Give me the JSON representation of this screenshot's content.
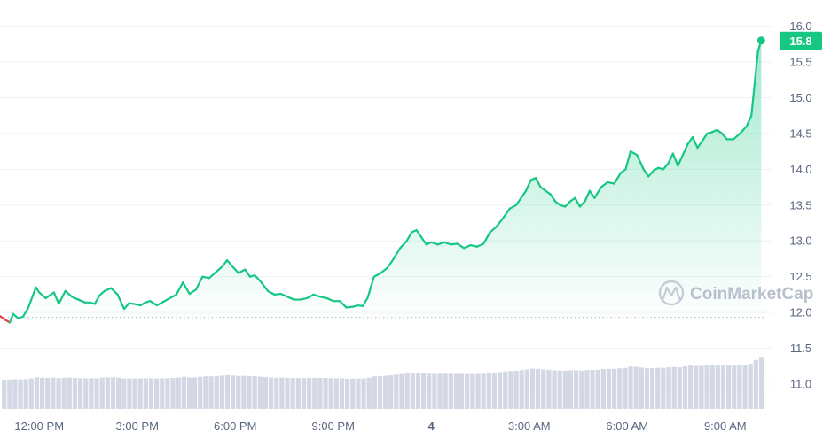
{
  "chart_data": {
    "type": "line",
    "title": "",
    "xlabel": "",
    "ylabel": "",
    "ylim": [
      10.6,
      16.2
    ],
    "y_ticks": [
      "16.0",
      "15.5",
      "15.0",
      "14.5",
      "14.0",
      "13.5",
      "13.0",
      "12.5",
      "12.0",
      "11.5",
      "11.0"
    ],
    "x_ticks": [
      "12:00 PM",
      "3:00 PM",
      "6:00 PM",
      "9:00 PM",
      "4",
      "3:00 AM",
      "6:00 AM",
      "9:00 AM"
    ],
    "x_range_hours": [
      -1.2,
      22.2
    ],
    "x_tick_hours": [
      0,
      3,
      6,
      9,
      12,
      15,
      18,
      21
    ],
    "reference_value": 11.93,
    "last_price": 15.8,
    "last_price_label": "15.8",
    "series": [
      {
        "values_hours": [
          -1.2,
          -1.05,
          -0.9,
          -0.8,
          -0.65,
          -0.5,
          -0.35,
          -0.1,
          0.0,
          0.2,
          0.45,
          0.6,
          0.8,
          1.0,
          1.2,
          1.4,
          1.55,
          1.7,
          1.85,
          2.0,
          2.2,
          2.4,
          2.6,
          2.75,
          2.9,
          3.1,
          3.25,
          3.4,
          3.6,
          3.8,
          4.0,
          4.2,
          4.4,
          4.6,
          4.8,
          5.0,
          5.2,
          5.4,
          5.6,
          5.75,
          5.9,
          6.1,
          6.3,
          6.45,
          6.6,
          6.8,
          7.0,
          7.2,
          7.4,
          7.6,
          7.8,
          8.0,
          8.2,
          8.4,
          8.6,
          8.8,
          9.0,
          9.2,
          9.4,
          9.6,
          9.75,
          9.9,
          10.05,
          10.25,
          10.45,
          10.65,
          10.85,
          11.05,
          11.25,
          11.4,
          11.55,
          11.7,
          11.85,
          12.0,
          12.2,
          12.4,
          12.6,
          12.8,
          13.0,
          13.2,
          13.4,
          13.6,
          13.8,
          14.0,
          14.2,
          14.4,
          14.6,
          14.75,
          14.9,
          15.05,
          15.2,
          15.35,
          15.5,
          15.65,
          15.8,
          15.95,
          16.1,
          16.25,
          16.4,
          16.55,
          16.7,
          16.85,
          17.0,
          17.2,
          17.4,
          17.6,
          17.8,
          17.95,
          18.1,
          18.3,
          18.5,
          18.65,
          18.8,
          18.95,
          19.1,
          19.25,
          19.4,
          19.55,
          19.7,
          19.85,
          20.0,
          20.15,
          20.3,
          20.45,
          20.6,
          20.75,
          20.9,
          21.05,
          21.25,
          21.45,
          21.65,
          21.8,
          21.9,
          22.0,
          22.1
        ],
        "values": [
          11.95,
          11.9,
          11.86,
          11.98,
          11.92,
          11.94,
          12.05,
          12.35,
          12.28,
          12.2,
          12.28,
          12.12,
          12.3,
          12.22,
          12.18,
          12.14,
          12.14,
          12.12,
          12.24,
          12.3,
          12.34,
          12.25,
          12.05,
          12.13,
          12.12,
          12.1,
          12.14,
          12.16,
          12.1,
          12.15,
          12.2,
          12.25,
          12.42,
          12.26,
          12.32,
          12.5,
          12.48,
          12.56,
          12.64,
          12.73,
          12.65,
          12.55,
          12.6,
          12.5,
          12.52,
          12.42,
          12.3,
          12.25,
          12.26,
          12.22,
          12.18,
          12.18,
          12.2,
          12.25,
          12.22,
          12.2,
          12.16,
          12.16,
          12.07,
          12.08,
          12.1,
          12.09,
          12.2,
          12.5,
          12.55,
          12.62,
          12.75,
          12.9,
          13.0,
          13.12,
          13.15,
          13.05,
          12.95,
          12.98,
          12.95,
          12.98,
          12.95,
          12.96,
          12.9,
          12.94,
          12.92,
          12.96,
          13.12,
          13.2,
          13.32,
          13.45,
          13.5,
          13.6,
          13.7,
          13.85,
          13.88,
          13.75,
          13.7,
          13.65,
          13.55,
          13.5,
          13.48,
          13.55,
          13.6,
          13.48,
          13.55,
          13.7,
          13.6,
          13.75,
          13.82,
          13.8,
          13.95,
          14.0,
          14.25,
          14.2,
          14.0,
          13.9,
          13.98,
          14.02,
          14.0,
          14.08,
          14.22,
          14.05,
          14.2,
          14.35,
          14.45,
          14.3,
          14.4,
          14.5,
          14.52,
          14.55,
          14.5,
          14.42,
          14.42,
          14.5,
          14.6,
          14.75,
          15.2,
          15.65,
          15.8
        ]
      }
    ],
    "volume": [
      6,
      6,
      6,
      6,
      6,
      6,
      6,
      6,
      6,
      6,
      6,
      6,
      6,
      6,
      6,
      6,
      6,
      6,
      6,
      6,
      6,
      6,
      6,
      6,
      6,
      6,
      6,
      6,
      6,
      6,
      6,
      6,
      6,
      6,
      6,
      6,
      6,
      6,
      6,
      6,
      6,
      6,
      6,
      6,
      6,
      6,
      6,
      6,
      6,
      6,
      6,
      6,
      6,
      6,
      6,
      6,
      6,
      6,
      6,
      6,
      6,
      6,
      6,
      6,
      6,
      6,
      6,
      6,
      6,
      6,
      6,
      6,
      6,
      6,
      6,
      6,
      6,
      6,
      6,
      6,
      6,
      6,
      6,
      6,
      6,
      6,
      6,
      6,
      6,
      6,
      6,
      6,
      6,
      6,
      6,
      6,
      6,
      6,
      6,
      6,
      6,
      6,
      6,
      6,
      6,
      6,
      6,
      6,
      6,
      6,
      6,
      6,
      6,
      6,
      6,
      6,
      6,
      6,
      6,
      6,
      6,
      6,
      6,
      6,
      6,
      6,
      6,
      6,
      6,
      6,
      6,
      6,
      6,
      6,
      6,
      6,
      6,
      6,
      6,
      6
    ],
    "grid": true,
    "legend": "none",
    "watermark": "CoinMarketCap",
    "colors": {
      "up": "#16c784",
      "down": "#ea3943",
      "volume": "#d4d8e4",
      "grid": "#eff2f5",
      "tick": "#58667e",
      "reference": "#a6b0c3"
    }
  }
}
